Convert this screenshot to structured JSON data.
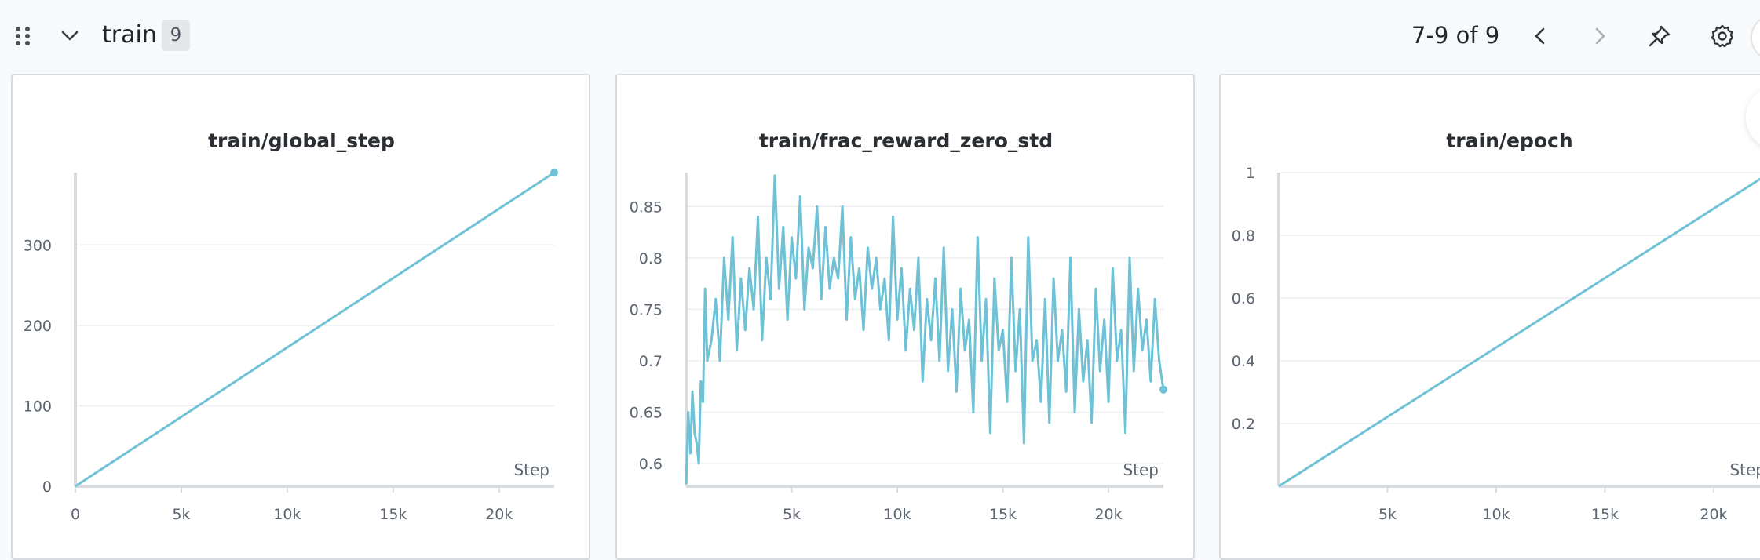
{
  "section": {
    "title": "train",
    "count": "9",
    "pagination": "7-9 of 9"
  },
  "colors": {
    "line": "#6fc1d5",
    "axis": "#d9dcdf",
    "grid": "#eceef1"
  },
  "icons": {
    "drag": "drag-handle-icon",
    "collapse": "chevron-down-icon",
    "prev": "chevron-left-icon",
    "next": "chevron-right-icon",
    "pin": "pin-icon",
    "settings": "gear-icon"
  },
  "panels": [
    {
      "title": "train/global_step",
      "x_label": "Step",
      "chart_data": {
        "type": "line",
        "title": "train/global_step",
        "xlabel": "Step",
        "ylabel": "",
        "xlim": [
          0,
          22600
        ],
        "ylim": [
          0,
          390
        ],
        "x_ticks": [
          0,
          5000,
          10000,
          15000,
          20000
        ],
        "x_tick_labels": [
          "0",
          "5k",
          "10k",
          "15k",
          "20k"
        ],
        "y_ticks": [
          0,
          100,
          200,
          300
        ],
        "y_tick_labels": [
          "0",
          "100",
          "200",
          "300"
        ],
        "grid": true,
        "series": [
          {
            "x": [
              0,
              22600
            ],
            "y": [
              0,
              390
            ]
          }
        ]
      }
    },
    {
      "title": "train/frac_reward_zero_std",
      "x_label": "Step",
      "chart_data": {
        "type": "line",
        "title": "train/frac_reward_zero_std",
        "xlabel": "Step",
        "ylabel": "",
        "xlim": [
          0,
          22600
        ],
        "ylim": [
          0.578,
          0.883
        ],
        "x_ticks": [
          5000,
          10000,
          15000,
          20000
        ],
        "x_tick_labels": [
          "5k",
          "10k",
          "15k",
          "20k"
        ],
        "y_ticks": [
          0.6,
          0.65,
          0.7,
          0.75,
          0.8,
          0.85
        ],
        "y_tick_labels": [
          "0.6",
          "0.65",
          "0.7",
          "0.75",
          "0.8",
          "0.85"
        ],
        "grid": true,
        "series": [
          {
            "x": [
              0,
              100,
              200,
              300,
              400,
              500,
              600,
              700,
              800,
              900,
              1000,
              1200,
              1400,
              1600,
              1800,
              2000,
              2200,
              2400,
              2600,
              2800,
              3000,
              3200,
              3400,
              3600,
              3800,
              4000,
              4200,
              4400,
              4600,
              4800,
              5000,
              5200,
              5400,
              5600,
              5800,
              6000,
              6200,
              6400,
              6600,
              6800,
              7000,
              7200,
              7400,
              7600,
              7800,
              8000,
              8200,
              8400,
              8600,
              8800,
              9000,
              9200,
              9400,
              9600,
              9800,
              10000,
              10200,
              10400,
              10600,
              10800,
              11000,
              11200,
              11400,
              11600,
              11800,
              12000,
              12200,
              12400,
              12600,
              12800,
              13000,
              13200,
              13400,
              13600,
              13800,
              14000,
              14200,
              14400,
              14600,
              14800,
              15000,
              15200,
              15400,
              15600,
              15800,
              16000,
              16200,
              16400,
              16600,
              16800,
              17000,
              17200,
              17400,
              17600,
              17800,
              18000,
              18200,
              18400,
              18600,
              18800,
              19000,
              19200,
              19400,
              19600,
              19800,
              20000,
              20200,
              20400,
              20600,
              20800,
              21000,
              21200,
              21400,
              21600,
              21800,
              22000,
              22200,
              22400,
              22600
            ],
            "y": [
              0.58,
              0.65,
              0.61,
              0.67,
              0.63,
              0.62,
              0.6,
              0.68,
              0.66,
              0.77,
              0.7,
              0.72,
              0.76,
              0.7,
              0.8,
              0.74,
              0.82,
              0.71,
              0.78,
              0.73,
              0.79,
              0.75,
              0.84,
              0.72,
              0.8,
              0.76,
              0.88,
              0.77,
              0.83,
              0.74,
              0.82,
              0.78,
              0.86,
              0.75,
              0.81,
              0.79,
              0.85,
              0.76,
              0.83,
              0.77,
              0.8,
              0.78,
              0.85,
              0.74,
              0.82,
              0.76,
              0.79,
              0.73,
              0.81,
              0.77,
              0.8,
              0.75,
              0.78,
              0.72,
              0.84,
              0.74,
              0.79,
              0.71,
              0.77,
              0.73,
              0.8,
              0.68,
              0.76,
              0.72,
              0.78,
              0.7,
              0.81,
              0.69,
              0.75,
              0.67,
              0.77,
              0.71,
              0.74,
              0.65,
              0.82,
              0.7,
              0.76,
              0.63,
              0.78,
              0.71,
              0.73,
              0.66,
              0.8,
              0.69,
              0.75,
              0.62,
              0.82,
              0.7,
              0.72,
              0.66,
              0.76,
              0.64,
              0.78,
              0.7,
              0.73,
              0.67,
              0.8,
              0.65,
              0.75,
              0.68,
              0.72,
              0.64,
              0.77,
              0.69,
              0.74,
              0.66,
              0.79,
              0.7,
              0.73,
              0.63,
              0.8,
              0.69,
              0.77,
              0.71,
              0.74,
              0.68,
              0.76,
              0.7,
              0.672
            ]
          }
        ]
      }
    },
    {
      "title": "train/epoch",
      "x_label": "Step",
      "chart_data": {
        "type": "line",
        "title": "train/epoch",
        "xlabel": "Step",
        "ylabel": "",
        "xlim": [
          0,
          22600
        ],
        "ylim": [
          0,
          1
        ],
        "x_ticks": [
          5000,
          10000,
          15000,
          20000
        ],
        "x_tick_labels": [
          "5k",
          "10k",
          "15k",
          "20k"
        ],
        "y_ticks": [
          0.2,
          0.4,
          0.6,
          0.8,
          1
        ],
        "y_tick_labels": [
          "0.2",
          "0.4",
          "0.6",
          "0.8",
          "1"
        ],
        "grid": true,
        "series": [
          {
            "x": [
              0,
              22600
            ],
            "y": [
              0,
              1
            ]
          }
        ]
      }
    }
  ]
}
